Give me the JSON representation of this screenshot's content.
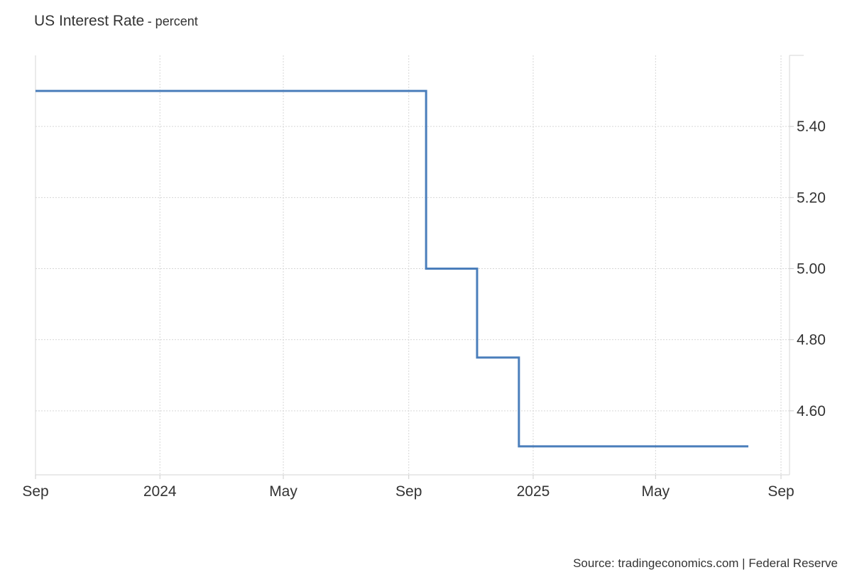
{
  "header": {
    "title": "US Interest Rate",
    "subtitle": "- percent"
  },
  "footer": {
    "source": "Source: tradingeconomics.com | Federal Reserve"
  },
  "chart_data": {
    "type": "line",
    "step": true,
    "title": "US Interest Rate",
    "ylabel": "percent",
    "xlim": [
      "2023-09-01",
      "2025-09-01"
    ],
    "ylim": [
      4.42,
      5.6
    ],
    "y_ticks": [
      4.6,
      4.8,
      5.0,
      5.2,
      5.4
    ],
    "y_tick_labels": [
      "4.60",
      "4.80",
      "5.00",
      "5.20",
      "5.40"
    ],
    "x_ticks": [
      {
        "date": "2023-09-01",
        "label": "Sep"
      },
      {
        "date": "2024-01-01",
        "label": "2024"
      },
      {
        "date": "2024-05-01",
        "label": "May"
      },
      {
        "date": "2024-09-01",
        "label": "Sep"
      },
      {
        "date": "2025-01-01",
        "label": "2025"
      },
      {
        "date": "2025-05-01",
        "label": "May"
      },
      {
        "date": "2025-09-01",
        "label": "Sep"
      }
    ],
    "series": [
      {
        "color": "#4a7ebb",
        "points": [
          {
            "x": "2023-09-01",
            "y": 5.5
          },
          {
            "x": "2024-09-18",
            "y": 5.0
          },
          {
            "x": "2024-11-07",
            "y": 4.75
          },
          {
            "x": "2024-12-18",
            "y": 4.5
          },
          {
            "x": "2025-07-31",
            "y": 4.5
          }
        ]
      }
    ],
    "grid": true,
    "y_axis_position": "right",
    "legend": "none"
  }
}
